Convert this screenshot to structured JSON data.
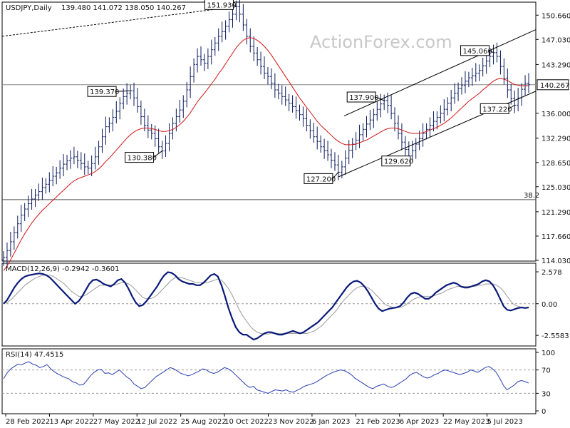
{
  "watermark": "ActionForex.com",
  "chart_data": [
    {
      "type": "candlestick",
      "panel": "price",
      "header": "USDJPY,Daily",
      "ohlc_label": "139.480 141.072 138.050 140.267",
      "last_price_label": "140.267",
      "ylim": [
        114.03,
        152.5
      ],
      "y_ticks": [
        "150.660",
        "147.030",
        "143.290",
        "140.267",
        "136.000",
        "132.290",
        "128.650",
        "125.030",
        "121.290",
        "117.660",
        "114.030"
      ],
      "y_tick_values": [
        150.66,
        147.03,
        143.29,
        140.267,
        136.0,
        132.29,
        128.65,
        125.03,
        121.29,
        117.66,
        114.03
      ],
      "x_ticks": [
        "28 Feb 2022",
        "13 Apr 2022",
        "27 May 2022",
        "12 Jul 2022",
        "25 Aug 2022",
        "10 Oct 2022",
        "23 Nov 2022",
        "6 Jan 2023",
        "21 Feb 2023",
        "6 Apr 2023",
        "22 May 2023",
        "5 Jul 2023"
      ],
      "swing_points": [
        {
          "label": "151.930",
          "value": 151.93
        },
        {
          "label": "139.370",
          "value": 139.37
        },
        {
          "label": "130.380",
          "value": 130.38
        },
        {
          "label": "127.200",
          "value": 127.2
        },
        {
          "label": "137.900",
          "value": 137.9
        },
        {
          "label": "129.620",
          "value": 129.62
        },
        {
          "label": "145.060",
          "value": 145.06
        },
        {
          "label": "137.220",
          "value": 137.22
        }
      ],
      "fib_label": "38.2",
      "fib_level": 123.1,
      "series": [
        {
          "values": [
            114.5,
            115.5,
            116.8,
            118.2,
            119.5,
            120.8,
            121.7,
            122.5,
            123.2,
            123.8,
            124.3,
            124.9,
            125.4,
            126.0,
            126.6,
            127.1,
            127.8,
            128.4,
            128.9,
            129.3,
            129.5,
            129.0,
            128.5,
            128.0,
            127.8,
            128.5,
            129.5,
            131.0,
            132.5,
            134.0,
            134.5,
            135.4,
            136.3,
            137.5,
            138.5,
            139.0,
            139.37,
            138.3,
            137.0,
            135.5,
            134.2,
            133.5,
            133.0,
            132.2,
            131.0,
            130.38,
            131.5,
            133.0,
            134.5,
            135.5,
            136.5,
            137.8,
            139.5,
            141.5,
            143.3,
            144.5,
            144.0,
            143.5,
            144.5,
            145.5,
            146.5,
            147.5,
            148.2,
            149.0,
            150.0,
            150.8,
            151.93,
            150.8,
            149.2,
            147.5,
            146.0,
            145.0,
            144.0,
            143.0,
            142.0,
            141.5,
            140.5,
            139.5,
            139.0,
            138.5,
            138.0,
            137.5,
            137.0,
            136.4,
            135.8,
            135.2,
            134.2,
            133.4,
            132.5,
            131.8,
            131.0,
            130.4,
            129.8,
            129.0,
            128.3,
            127.2,
            128.0,
            129.3,
            130.5,
            131.4,
            132.0,
            132.8,
            133.6,
            134.4,
            135.0,
            135.8,
            136.6,
            137.4,
            137.9,
            137.2,
            136.0,
            134.5,
            133.0,
            131.7,
            130.6,
            129.62,
            130.4,
            131.4,
            132.2,
            133.0,
            133.6,
            134.2,
            134.8,
            135.4,
            136.0,
            136.6,
            137.5,
            138.3,
            139.0,
            139.7,
            140.2,
            140.8,
            141.3,
            141.6,
            142.0,
            142.4,
            143.1,
            143.8,
            144.5,
            145.06,
            144.5,
            143.0,
            141.2,
            139.5,
            138.2,
            137.22,
            138.3,
            139.6,
            140.5,
            140.267
          ],
          "style": "candles"
        },
        {
          "name": "",
          "values": [
            112.5,
            113.2,
            114.1,
            115.1,
            116.1,
            117.1,
            118.0,
            118.8,
            119.6,
            120.3,
            120.9,
            121.5,
            122.0,
            122.5,
            123.0,
            123.5,
            124.0,
            124.5,
            125.0,
            125.5,
            125.9,
            126.2,
            126.4,
            126.6,
            126.8,
            127.0,
            127.3,
            127.7,
            128.2,
            128.8,
            129.3,
            129.9,
            130.5,
            131.1,
            131.7,
            132.3,
            132.8,
            133.2,
            133.5,
            133.7,
            133.8,
            133.8,
            133.7,
            133.6,
            133.4,
            133.3,
            133.3,
            133.4,
            133.6,
            133.9,
            134.3,
            134.8,
            135.4,
            136.1,
            136.9,
            137.7,
            138.4,
            139.0,
            139.7,
            140.4,
            141.1,
            141.9,
            142.6,
            143.4,
            144.2,
            145.0,
            145.8,
            146.4,
            146.9,
            147.2,
            147.3,
            147.2,
            146.9,
            146.5,
            146.0,
            145.4,
            144.7,
            143.9,
            143.1,
            142.3,
            141.5,
            140.7,
            139.9,
            139.1,
            138.3,
            137.6,
            136.9,
            136.2,
            135.5,
            134.8,
            134.2,
            133.7,
            133.2,
            132.7,
            132.2,
            131.8,
            131.5,
            131.3,
            131.3,
            131.3,
            131.4,
            131.6,
            131.8,
            132.0,
            132.3,
            132.6,
            132.9,
            133.2,
            133.5,
            133.7,
            133.8,
            133.8,
            133.7,
            133.5,
            133.3,
            133.1,
            133.0,
            133.0,
            133.0,
            133.1,
            133.3,
            133.5,
            133.7,
            133.9,
            134.2,
            134.5,
            134.9,
            135.3,
            135.8,
            136.3,
            136.8,
            137.3,
            137.8,
            138.2,
            138.6,
            139.0,
            139.5,
            139.9,
            140.4,
            140.8,
            141.1,
            141.2,
            141.1,
            140.9,
            140.6,
            140.3,
            140.2,
            140.1,
            140.1,
            140.1
          ],
          "style": "line"
        }
      ]
    },
    {
      "type": "line",
      "panel": "macd",
      "header": "MACD(12,26,9) -0.2942 -0.3601",
      "ylim": [
        -3.3,
        3.1
      ],
      "y_ticks": [
        "2.578",
        "0.00",
        "-2.5583"
      ],
      "y_tick_values": [
        2.578,
        0.0,
        -2.5583
      ],
      "series": [
        {
          "name": "MACD",
          "values": [
            0.0,
            0.3,
            0.8,
            1.3,
            1.7,
            2.0,
            2.2,
            2.3,
            2.35,
            2.4,
            2.45,
            2.4,
            2.3,
            2.1,
            1.8,
            1.5,
            1.2,
            0.9,
            0.6,
            0.3,
            0.0,
            0.2,
            0.6,
            1.1,
            1.6,
            1.9,
            1.95,
            1.8,
            1.6,
            1.5,
            1.4,
            1.6,
            1.9,
            2.0,
            1.7,
            1.2,
            0.6,
            0.1,
            -0.2,
            -0.1,
            0.2,
            0.6,
            1.0,
            1.4,
            1.9,
            2.3,
            2.55,
            2.5,
            2.3,
            2.0,
            1.8,
            1.7,
            1.6,
            1.6,
            1.5,
            1.5,
            1.7,
            2.0,
            2.3,
            2.4,
            2.2,
            1.5,
            0.6,
            -0.4,
            -1.2,
            -1.9,
            -2.3,
            -2.5,
            -2.5,
            -2.7,
            -2.9,
            -2.8,
            -2.6,
            -2.4,
            -2.3,
            -2.3,
            -2.4,
            -2.5,
            -2.5,
            -2.4,
            -2.3,
            -2.2,
            -2.3,
            -2.4,
            -2.3,
            -2.1,
            -1.9,
            -1.7,
            -1.5,
            -1.2,
            -0.9,
            -0.6,
            -0.3,
            0.1,
            0.5,
            0.9,
            1.3,
            1.6,
            1.8,
            1.85,
            1.7,
            1.4,
            1.0,
            0.5,
            0.0,
            -0.4,
            -0.6,
            -0.5,
            -0.4,
            -0.35,
            -0.3,
            -0.2,
            0.1,
            0.5,
            0.8,
            0.9,
            0.8,
            0.6,
            0.4,
            0.4,
            0.6,
            0.9,
            1.1,
            1.3,
            1.5,
            1.6,
            1.7,
            1.6,
            1.4,
            1.3,
            1.3,
            1.4,
            1.5,
            1.6,
            1.8,
            1.9,
            1.8,
            1.5,
            1.0,
            0.4,
            -0.2,
            -0.5,
            -0.55,
            -0.45,
            -0.35,
            -0.3,
            -0.35,
            -0.3
          ]
        },
        {
          "name": "Signal",
          "values": [
            0.0,
            0.1,
            0.3,
            0.6,
            0.9,
            1.2,
            1.5,
            1.7,
            1.9,
            2.1,
            2.2,
            2.3,
            2.3,
            2.3,
            2.2,
            2.0,
            1.8,
            1.6,
            1.3,
            1.0,
            0.8,
            0.6,
            0.6,
            0.7,
            0.9,
            1.1,
            1.3,
            1.5,
            1.5,
            1.5,
            1.5,
            1.5,
            1.6,
            1.7,
            1.7,
            1.6,
            1.4,
            1.1,
            0.8,
            0.5,
            0.4,
            0.4,
            0.5,
            0.7,
            1.0,
            1.3,
            1.6,
            1.9,
            2.1,
            2.1,
            2.1,
            2.0,
            1.9,
            1.8,
            1.7,
            1.7,
            1.7,
            1.7,
            1.8,
            1.9,
            2.0,
            1.9,
            1.6,
            1.2,
            0.7,
            0.1,
            -0.5,
            -1.0,
            -1.4,
            -1.8,
            -2.1,
            -2.3,
            -2.4,
            -2.45,
            -2.45,
            -2.4,
            -2.4,
            -2.4,
            -2.4,
            -2.4,
            -2.4,
            -2.4,
            -2.4,
            -2.4,
            -2.4,
            -2.4,
            -2.3,
            -2.2,
            -2.0,
            -1.8,
            -1.5,
            -1.2,
            -0.9,
            -0.6,
            -0.2,
            0.2,
            0.5,
            0.8,
            1.1,
            1.3,
            1.4,
            1.4,
            1.3,
            1.1,
            0.8,
            0.5,
            0.2,
            -0.1,
            -0.2,
            -0.3,
            -0.3,
            -0.3,
            -0.2,
            0.0,
            0.2,
            0.4,
            0.5,
            0.6,
            0.6,
            0.6,
            0.6,
            0.7,
            0.8,
            0.9,
            1.1,
            1.2,
            1.3,
            1.4,
            1.4,
            1.4,
            1.4,
            1.4,
            1.4,
            1.5,
            1.5,
            1.6,
            1.6,
            1.6,
            1.5,
            1.3,
            1.0,
            0.6,
            0.2,
            -0.1,
            -0.2,
            -0.3,
            -0.3,
            -0.3
          ]
        }
      ]
    },
    {
      "type": "line",
      "panel": "rsi",
      "header": "RSI(14) 47.4515",
      "ylim": [
        0,
        100
      ],
      "y_ticks": [
        "100",
        "70",
        "30",
        "0"
      ],
      "y_tick_values": [
        100,
        70,
        30,
        0
      ],
      "series": [
        {
          "name": "RSI",
          "values": [
            55,
            65,
            72,
            76,
            80,
            79,
            82,
            84,
            80,
            78,
            74,
            76,
            79,
            72,
            67,
            63,
            60,
            57,
            55,
            50,
            48,
            44,
            45,
            52,
            60,
            66,
            70,
            71,
            64,
            65,
            62,
            66,
            70,
            64,
            58,
            54,
            46,
            42,
            38,
            40,
            46,
            52,
            58,
            62,
            66,
            70,
            74,
            72,
            68,
            64,
            62,
            60,
            62,
            65,
            68,
            72,
            70,
            66,
            64,
            66,
            70,
            74,
            72,
            68,
            62,
            56,
            50,
            44,
            40,
            42,
            36,
            34,
            32,
            30,
            33,
            36,
            35,
            34,
            36,
            33,
            32,
            35,
            38,
            42,
            44,
            46,
            48,
            52,
            56,
            60,
            63,
            66,
            68,
            70,
            69,
            66,
            62,
            56,
            52,
            48,
            44,
            40,
            38,
            42,
            44,
            46,
            42,
            40,
            42,
            46,
            50,
            54,
            60,
            64,
            66,
            62,
            58,
            56,
            58,
            62,
            64,
            68,
            70,
            68,
            66,
            64,
            62,
            64,
            66,
            70,
            68,
            66,
            70,
            74,
            76,
            72,
            66,
            56,
            44,
            36,
            40,
            44,
            50,
            52,
            50,
            47.45
          ]
        }
      ]
    }
  ]
}
